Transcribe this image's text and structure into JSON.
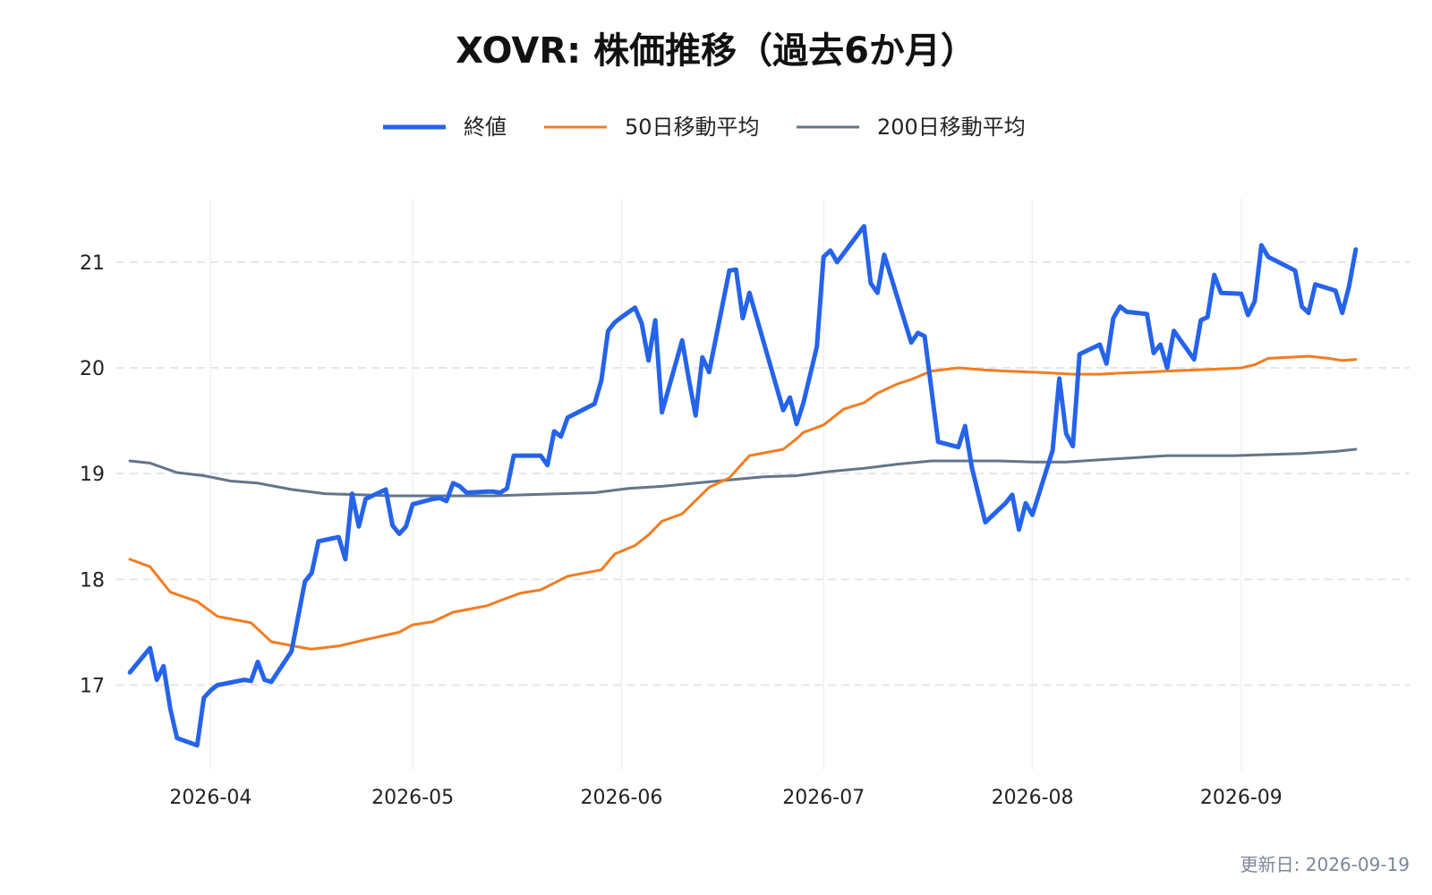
{
  "chart_data": {
    "type": "line",
    "title": "XOVR: 株価推移（過去6か月）",
    "xlabel": "",
    "ylabel": "",
    "x_range": [
      "2026-03-18",
      "2026-09-26"
    ],
    "ylim": [
      16.2,
      21.6
    ],
    "y_ticks": [
      17,
      18,
      19,
      20,
      21
    ],
    "x_ticks": [
      "2026-04-01",
      "2026-05-01",
      "2026-06-01",
      "2026-07-01",
      "2026-08-01",
      "2026-09-01"
    ],
    "x_tick_labels": [
      "2026-04",
      "2026-05",
      "2026-06",
      "2026-07",
      "2026-08",
      "2026-09"
    ],
    "grid": {
      "horizontal": "dashed",
      "vertical": "solid-light"
    },
    "legend": {
      "placement": "top-center"
    },
    "series": [
      {
        "name": "終値",
        "color": "#2563eb",
        "points": [
          [
            "2026-03-20",
            17.12
          ],
          [
            "2026-03-23",
            17.35
          ],
          [
            "2026-03-24",
            17.05
          ],
          [
            "2026-03-25",
            17.18
          ],
          [
            "2026-03-26",
            16.78
          ],
          [
            "2026-03-27",
            16.5
          ],
          [
            "2026-03-30",
            16.43
          ],
          [
            "2026-03-31",
            16.88
          ],
          [
            "2026-04-01",
            16.95
          ],
          [
            "2026-04-02",
            17.0
          ],
          [
            "2026-04-06",
            17.05
          ],
          [
            "2026-04-07",
            17.04
          ],
          [
            "2026-04-08",
            17.22
          ],
          [
            "2026-04-09",
            17.05
          ],
          [
            "2026-04-10",
            17.03
          ],
          [
            "2026-04-13",
            17.32
          ],
          [
            "2026-04-14",
            17.65
          ],
          [
            "2026-04-15",
            17.98
          ],
          [
            "2026-04-16",
            18.06
          ],
          [
            "2026-04-17",
            18.36
          ],
          [
            "2026-04-20",
            18.4
          ],
          [
            "2026-04-21",
            18.19
          ],
          [
            "2026-04-22",
            18.81
          ],
          [
            "2026-04-23",
            18.5
          ],
          [
            "2026-04-24",
            18.76
          ],
          [
            "2026-04-27",
            18.85
          ],
          [
            "2026-04-28",
            18.51
          ],
          [
            "2026-04-29",
            18.43
          ],
          [
            "2026-04-30",
            18.5
          ],
          [
            "2026-05-01",
            18.71
          ],
          [
            "2026-05-04",
            18.76
          ],
          [
            "2026-05-05",
            18.77
          ],
          [
            "2026-05-06",
            18.74
          ],
          [
            "2026-05-07",
            18.91
          ],
          [
            "2026-05-08",
            18.88
          ],
          [
            "2026-05-09",
            18.82
          ],
          [
            "2026-05-12",
            18.83
          ],
          [
            "2026-05-13",
            18.83
          ],
          [
            "2026-05-14",
            18.82
          ],
          [
            "2026-05-15",
            18.86
          ],
          [
            "2026-05-16",
            19.17
          ],
          [
            "2026-05-20",
            19.17
          ],
          [
            "2026-05-21",
            19.08
          ],
          [
            "2026-05-22",
            19.4
          ],
          [
            "2026-05-23",
            19.35
          ],
          [
            "2026-05-24",
            19.53
          ],
          [
            "2026-05-28",
            19.66
          ],
          [
            "2026-05-29",
            19.88
          ],
          [
            "2026-05-30",
            20.35
          ],
          [
            "2026-05-31",
            20.43
          ],
          [
            "2026-06-01",
            20.48
          ],
          [
            "2026-06-03",
            20.57
          ],
          [
            "2026-06-04",
            20.42
          ],
          [
            "2026-06-05",
            20.07
          ],
          [
            "2026-06-06",
            20.45
          ],
          [
            "2026-06-07",
            19.58
          ],
          [
            "2026-06-10",
            20.26
          ],
          [
            "2026-06-11",
            19.89
          ],
          [
            "2026-06-12",
            19.55
          ],
          [
            "2026-06-13",
            20.1
          ],
          [
            "2026-06-14",
            19.96
          ],
          [
            "2026-06-17",
            20.92
          ],
          [
            "2026-06-18",
            20.93
          ],
          [
            "2026-06-19",
            20.47
          ],
          [
            "2026-06-20",
            20.71
          ],
          [
            "2026-06-25",
            19.6
          ],
          [
            "2026-06-26",
            19.72
          ],
          [
            "2026-06-27",
            19.47
          ],
          [
            "2026-06-28",
            19.67
          ],
          [
            "2026-06-30",
            20.2
          ],
          [
            "2026-07-01",
            21.05
          ],
          [
            "2026-07-02",
            21.11
          ],
          [
            "2026-07-03",
            21.0
          ],
          [
            "2026-07-07",
            21.34
          ],
          [
            "2026-07-08",
            20.8
          ],
          [
            "2026-07-09",
            20.71
          ],
          [
            "2026-07-10",
            21.07
          ],
          [
            "2026-07-14",
            20.24
          ],
          [
            "2026-07-15",
            20.33
          ],
          [
            "2026-07-16",
            20.3
          ],
          [
            "2026-07-18",
            19.3
          ],
          [
            "2026-07-21",
            19.25
          ],
          [
            "2026-07-22",
            19.45
          ],
          [
            "2026-07-23",
            19.06
          ],
          [
            "2026-07-25",
            18.54
          ],
          [
            "2026-07-28",
            18.72
          ],
          [
            "2026-07-29",
            18.8
          ],
          [
            "2026-07-30",
            18.47
          ],
          [
            "2026-07-31",
            18.72
          ],
          [
            "2026-08-01",
            18.61
          ],
          [
            "2026-08-04",
            19.22
          ],
          [
            "2026-08-05",
            19.9
          ],
          [
            "2026-08-06",
            19.38
          ],
          [
            "2026-08-07",
            19.26
          ],
          [
            "2026-08-08",
            20.13
          ],
          [
            "2026-08-11",
            20.22
          ],
          [
            "2026-08-12",
            20.04
          ],
          [
            "2026-08-13",
            20.47
          ],
          [
            "2026-08-14",
            20.58
          ],
          [
            "2026-08-15",
            20.53
          ],
          [
            "2026-08-18",
            20.51
          ],
          [
            "2026-08-19",
            20.14
          ],
          [
            "2026-08-20",
            20.22
          ],
          [
            "2026-08-21",
            20.0
          ],
          [
            "2026-08-22",
            20.35
          ],
          [
            "2026-08-25",
            20.08
          ],
          [
            "2026-08-26",
            20.45
          ],
          [
            "2026-08-27",
            20.48
          ],
          [
            "2026-08-28",
            20.88
          ],
          [
            "2026-08-29",
            20.71
          ],
          [
            "2026-09-01",
            20.7
          ],
          [
            "2026-09-02",
            20.5
          ],
          [
            "2026-09-03",
            20.63
          ],
          [
            "2026-09-04",
            21.16
          ],
          [
            "2026-09-05",
            21.05
          ],
          [
            "2026-09-09",
            20.92
          ],
          [
            "2026-09-10",
            20.58
          ],
          [
            "2026-09-11",
            20.52
          ],
          [
            "2026-09-12",
            20.79
          ],
          [
            "2026-09-15",
            20.73
          ],
          [
            "2026-09-16",
            20.52
          ],
          [
            "2026-09-17",
            20.77
          ],
          [
            "2026-09-18",
            21.12
          ]
        ]
      },
      {
        "name": "50日移動平均",
        "color": "#f47c20",
        "points": [
          [
            "2026-03-20",
            18.19
          ],
          [
            "2026-03-23",
            18.12
          ],
          [
            "2026-03-26",
            17.88
          ],
          [
            "2026-03-30",
            17.79
          ],
          [
            "2026-04-02",
            17.65
          ],
          [
            "2026-04-07",
            17.59
          ],
          [
            "2026-04-10",
            17.41
          ],
          [
            "2026-04-15",
            17.35
          ],
          [
            "2026-04-16",
            17.34
          ],
          [
            "2026-04-20",
            17.37
          ],
          [
            "2026-04-24",
            17.43
          ],
          [
            "2026-04-29",
            17.5
          ],
          [
            "2026-05-01",
            17.57
          ],
          [
            "2026-05-04",
            17.6
          ],
          [
            "2026-05-07",
            17.69
          ],
          [
            "2026-05-12",
            17.75
          ],
          [
            "2026-05-14",
            17.8
          ],
          [
            "2026-05-17",
            17.87
          ],
          [
            "2026-05-20",
            17.9
          ],
          [
            "2026-05-24",
            18.03
          ],
          [
            "2026-05-29",
            18.09
          ],
          [
            "2026-05-31",
            18.24
          ],
          [
            "2026-06-03",
            18.32
          ],
          [
            "2026-06-05",
            18.42
          ],
          [
            "2026-06-07",
            18.55
          ],
          [
            "2026-06-10",
            18.62
          ],
          [
            "2026-06-14",
            18.87
          ],
          [
            "2026-06-17",
            18.96
          ],
          [
            "2026-06-20",
            19.17
          ],
          [
            "2026-06-25",
            19.23
          ],
          [
            "2026-06-27",
            19.33
          ],
          [
            "2026-06-28",
            19.39
          ],
          [
            "2026-07-01",
            19.46
          ],
          [
            "2026-07-04",
            19.61
          ],
          [
            "2026-07-07",
            19.67
          ],
          [
            "2026-07-09",
            19.76
          ],
          [
            "2026-07-12",
            19.85
          ],
          [
            "2026-07-14",
            19.89
          ],
          [
            "2026-07-17",
            19.97
          ],
          [
            "2026-07-21",
            20.0
          ],
          [
            "2026-07-25",
            19.98
          ],
          [
            "2026-07-28",
            19.97
          ],
          [
            "2026-08-01",
            19.96
          ],
          [
            "2026-08-04",
            19.95
          ],
          [
            "2026-08-07",
            19.94
          ],
          [
            "2026-08-11",
            19.94
          ],
          [
            "2026-08-14",
            19.95
          ],
          [
            "2026-08-18",
            19.96
          ],
          [
            "2026-08-21",
            19.97
          ],
          [
            "2026-08-25",
            19.98
          ],
          [
            "2026-08-29",
            19.99
          ],
          [
            "2026-09-01",
            20.0
          ],
          [
            "2026-09-03",
            20.03
          ],
          [
            "2026-09-05",
            20.09
          ],
          [
            "2026-09-08",
            20.1
          ],
          [
            "2026-09-11",
            20.11
          ],
          [
            "2026-09-14",
            20.09
          ],
          [
            "2026-09-16",
            20.07
          ],
          [
            "2026-09-18",
            20.08
          ]
        ]
      },
      {
        "name": "200日移動平均",
        "color": "#64748b",
        "points": [
          [
            "2026-03-20",
            19.12
          ],
          [
            "2026-03-23",
            19.1
          ],
          [
            "2026-03-27",
            19.01
          ],
          [
            "2026-03-31",
            18.98
          ],
          [
            "2026-04-04",
            18.93
          ],
          [
            "2026-04-08",
            18.91
          ],
          [
            "2026-04-13",
            18.85
          ],
          [
            "2026-04-18",
            18.81
          ],
          [
            "2026-04-23",
            18.8
          ],
          [
            "2026-04-28",
            18.79
          ],
          [
            "2026-05-03",
            18.79
          ],
          [
            "2026-05-08",
            18.79
          ],
          [
            "2026-05-13",
            18.79
          ],
          [
            "2026-05-18",
            18.8
          ],
          [
            "2026-05-23",
            18.81
          ],
          [
            "2026-05-28",
            18.82
          ],
          [
            "2026-06-02",
            18.86
          ],
          [
            "2026-06-07",
            18.88
          ],
          [
            "2026-06-12",
            18.91
          ],
          [
            "2026-06-17",
            18.94
          ],
          [
            "2026-06-22",
            18.97
          ],
          [
            "2026-06-27",
            18.98
          ],
          [
            "2026-07-02",
            19.02
          ],
          [
            "2026-07-07",
            19.05
          ],
          [
            "2026-07-12",
            19.09
          ],
          [
            "2026-07-17",
            19.12
          ],
          [
            "2026-07-22",
            19.12
          ],
          [
            "2026-07-27",
            19.12
          ],
          [
            "2026-08-01",
            19.11
          ],
          [
            "2026-08-06",
            19.11
          ],
          [
            "2026-08-11",
            19.13
          ],
          [
            "2026-08-16",
            19.15
          ],
          [
            "2026-08-21",
            19.17
          ],
          [
            "2026-08-26",
            19.17
          ],
          [
            "2026-08-31",
            19.17
          ],
          [
            "2026-09-05",
            19.18
          ],
          [
            "2026-09-10",
            19.19
          ],
          [
            "2026-09-15",
            19.21
          ],
          [
            "2026-09-18",
            19.23
          ]
        ]
      }
    ]
  },
  "footer": {
    "updated": "更新日: 2026-09-19"
  }
}
